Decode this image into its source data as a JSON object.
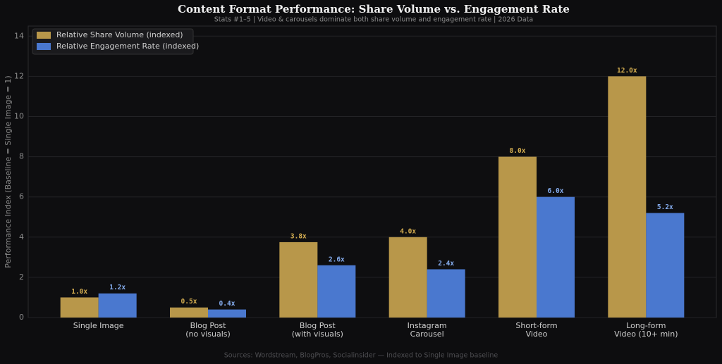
{
  "chart_data": {
    "type": "bar",
    "title": "Content Format Performance: Share Volume vs. Engagement Rate",
    "subtitle": "Stats #1–5  |  Video & carousels dominate both share volume and engagement rate  |  2026 Data",
    "ylabel": "Performance Index (Baseline = Single Image = 1)",
    "source": "Sources: Wordstream, BlogPros, Socialinsider — Indexed to Single Image baseline",
    "categories": [
      "Single Image",
      "Blog Post\n(no visuals)",
      "Blog Post\n(with visuals)",
      "Instagram\nCarousel",
      "Short-form\nVideo",
      "Long-form\nVideo (10+ min)"
    ],
    "series": [
      {
        "name": "Relative Share Volume (indexed)",
        "color": "#b8974a",
        "label_color": "#d4ad50",
        "values": [
          1.0,
          0.5,
          3.75,
          4.0,
          8.0,
          12.0
        ],
        "value_labels": [
          "1.0x",
          "0.5x",
          "3.8x",
          "4.0x",
          "8.0x",
          "12.0x"
        ]
      },
      {
        "name": "Relative Engagement Rate (indexed)",
        "color": "#4a78cf",
        "label_color": "#86aef0",
        "values": [
          1.2,
          0.4,
          2.6,
          2.4,
          6.0,
          5.2
        ],
        "value_labels": [
          "1.2x",
          "0.4x",
          "2.6x",
          "2.4x",
          "6.0x",
          "5.2x"
        ]
      }
    ],
    "ylim": [
      0,
      14.5
    ],
    "yticks": [
      0,
      2,
      4,
      6,
      8,
      10,
      12,
      14
    ],
    "grid": true,
    "legend": "upper left"
  }
}
